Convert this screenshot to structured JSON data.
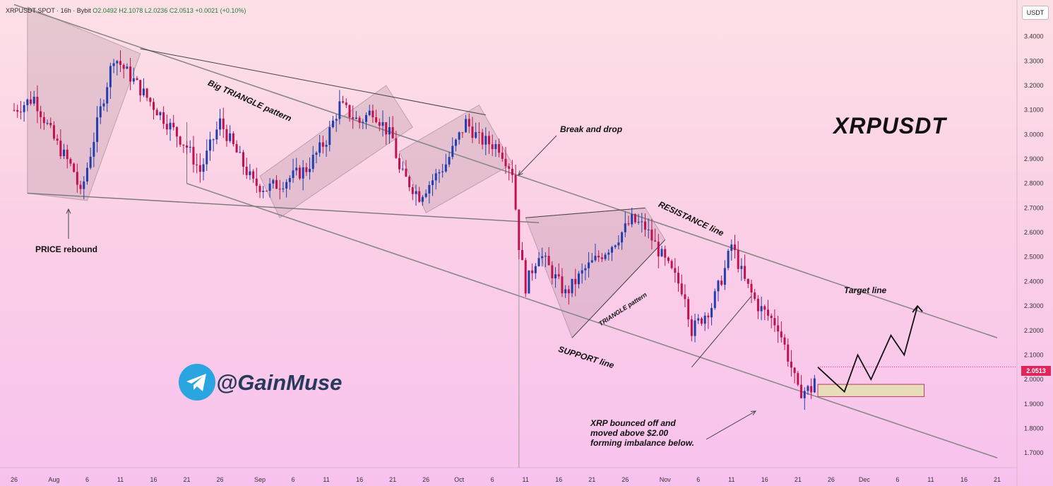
{
  "header": {
    "symbol": "XRPUSDT SPOT · 16h · Bybit",
    "ohlc": "O2.0492  H2.1078  L2.0236  C2.0513  +0.0021 (+0.10%)"
  },
  "price_axis_unit": "USDT",
  "current_price": "2.0513",
  "title": "XRPUSDT",
  "handle": "@GainMuse",
  "icon": "telegram-icon",
  "colors": {
    "up": "#1f3fae",
    "down": "#c0124f",
    "price_tag": "#e0255d",
    "zone": "#e7ddb8"
  },
  "annotations": {
    "price_rebound": "PRICE rebound",
    "big_triangle": "Big TRIANGLE pattern",
    "break_and_drop": "Break and drop",
    "resistance": "RESISTANCE line",
    "support": "SUPPORT line",
    "triangle": "TRIANGLE pattern",
    "target": "Target line",
    "bounce_note": "XRP bounced off and\nmoved above $2.00\nforming imbalance below."
  },
  "chart_data": {
    "type": "candlestick",
    "title": "XRPUSDT",
    "y_ticks": [
      "3.4000",
      "3.3000",
      "3.2000",
      "3.1000",
      "3.0000",
      "2.9000",
      "2.8000",
      "2.7000",
      "2.6000",
      "2.5000",
      "2.4000",
      "2.3000",
      "2.2000",
      "2.1000",
      "2.0000",
      "1.9000",
      "1.8000",
      "1.7000"
    ],
    "ylim": [
      1.64,
      3.52
    ],
    "x_ticks": [
      "26",
      "Aug",
      "6",
      "11",
      "16",
      "21",
      "26",
      "Sep",
      "6",
      "11",
      "16",
      "21",
      "26",
      "Oct",
      "6",
      "11",
      "16",
      "21",
      "26",
      "Nov",
      "6",
      "11",
      "16",
      "21",
      "26",
      "Dec",
      "6",
      "11",
      "16",
      "21"
    ],
    "x_range": {
      "start": "2025-07-26",
      "end": "2025-12-21"
    },
    "path_points": [
      [
        "2025-07-26",
        3.1
      ],
      [
        "2025-07-29",
        3.15
      ],
      [
        "2025-08-01",
        2.98
      ],
      [
        "2025-08-04",
        2.85
      ],
      [
        "2025-08-05",
        2.75
      ],
      [
        "2025-08-08",
        3.1
      ],
      [
        "2025-08-10",
        3.32
      ],
      [
        "2025-08-13",
        3.22
      ],
      [
        "2025-08-15",
        3.15
      ],
      [
        "2025-08-18",
        3.05
      ],
      [
        "2025-08-21",
        2.95
      ],
      [
        "2025-08-23",
        2.85
      ],
      [
        "2025-08-26",
        3.05
      ],
      [
        "2025-08-28",
        2.95
      ],
      [
        "2025-08-31",
        2.8
      ],
      [
        "2025-09-02",
        2.78
      ],
      [
        "2025-09-04",
        2.8
      ],
      [
        "2025-09-08",
        2.86
      ],
      [
        "2025-09-11",
        2.98
      ],
      [
        "2025-09-13",
        3.12
      ],
      [
        "2025-09-16",
        3.05
      ],
      [
        "2025-09-18",
        3.1
      ],
      [
        "2025-09-21",
        2.98
      ],
      [
        "2025-09-22",
        2.85
      ],
      [
        "2025-09-25",
        2.75
      ],
      [
        "2025-09-29",
        2.88
      ],
      [
        "2025-10-02",
        3.05
      ],
      [
        "2025-10-04",
        2.98
      ],
      [
        "2025-10-07",
        2.95
      ],
      [
        "2025-10-09",
        2.85
      ],
      [
        "2025-10-10",
        2.55
      ],
      [
        "2025-10-11",
        2.38
      ],
      [
        "2025-10-13",
        2.52
      ],
      [
        "2025-10-17",
        2.35
      ],
      [
        "2025-10-20",
        2.45
      ],
      [
        "2025-10-24",
        2.55
      ],
      [
        "2025-10-27",
        2.65
      ],
      [
        "2025-10-29",
        2.62
      ],
      [
        "2025-11-01",
        2.48
      ],
      [
        "2025-11-04",
        2.35
      ],
      [
        "2025-11-05",
        2.2
      ],
      [
        "2025-11-08",
        2.3
      ],
      [
        "2025-11-10",
        2.45
      ],
      [
        "2025-11-11",
        2.55
      ],
      [
        "2025-11-13",
        2.4
      ],
      [
        "2025-11-15",
        2.3
      ],
      [
        "2025-11-18",
        2.22
      ],
      [
        "2025-11-20",
        2.05
      ],
      [
        "2025-11-21",
        1.95
      ],
      [
        "2025-11-23",
        1.96
      ],
      [
        "2025-11-24",
        2.05
      ]
    ],
    "levels": {
      "resistance": [
        [
          "2025-07-26",
          3.53
        ],
        [
          "2025-12-21",
          2.17
        ]
      ],
      "support": [
        [
          "2025-08-21",
          2.8
        ],
        [
          "2025-12-21",
          1.68
        ]
      ],
      "big_triangle_upper": [
        [
          "2025-08-14",
          3.35
        ],
        [
          "2025-10-05",
          3.08
        ]
      ],
      "big_triangle_lower": [
        [
          "2025-07-28",
          2.76
        ],
        [
          "2025-10-13",
          2.64
        ]
      ]
    },
    "imbalance_zone": {
      "from": "2025-11-24",
      "to": "2025-12-10",
      "low": 1.93,
      "high": 1.98
    },
    "projection": [
      [
        "2025-11-24",
        2.05
      ],
      [
        "2025-11-28",
        1.95
      ],
      [
        "2025-11-30",
        2.1
      ],
      [
        "2025-12-02",
        2.0
      ],
      [
        "2025-12-05",
        2.18
      ],
      [
        "2025-12-07",
        2.1
      ],
      [
        "2025-12-09",
        2.3
      ]
    ]
  }
}
